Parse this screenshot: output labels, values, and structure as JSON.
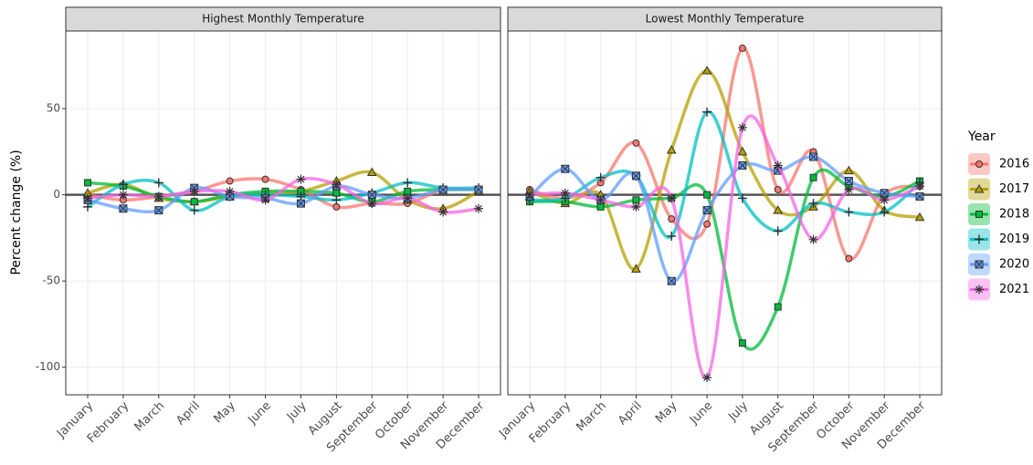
{
  "chart_data": [
    {
      "type": "line",
      "title": "Highest Monthly Temperature",
      "y_label": "Percent change (%)",
      "legend_title": "Year",
      "grid": true,
      "categories": [
        "January",
        "February",
        "March",
        "April",
        "May",
        "June",
        "July",
        "August",
        "September",
        "October",
        "November",
        "December"
      ],
      "ylim": [
        -116,
        95
      ],
      "yticks": [
        -100,
        -50,
        0,
        50
      ],
      "series": [
        {
          "name": "2016",
          "color": "#F8766D",
          "marker": "circle",
          "values": [
            0,
            -3,
            -1,
            2,
            8,
            9,
            3,
            -7,
            -5,
            -5,
            3,
            3
          ]
        },
        {
          "name": "2017",
          "color": "#B79F00",
          "marker": "triangle",
          "values": [
            1,
            6,
            -2,
            -4,
            -1,
            1,
            2,
            8,
            13,
            -3,
            -8,
            2
          ]
        },
        {
          "name": "2018",
          "color": "#00BA38",
          "marker": "square",
          "values": [
            7,
            5,
            -1,
            -4,
            0,
            2,
            2,
            1,
            -4,
            2,
            3,
            3
          ]
        },
        {
          "name": "2019",
          "color": "#00BFC4",
          "marker": "plus",
          "values": [
            -7,
            6,
            7,
            -9,
            -1,
            0,
            -1,
            -3,
            1,
            7,
            4,
            4
          ]
        },
        {
          "name": "2020",
          "color": "#619CFF",
          "marker": "boxx",
          "values": [
            -3,
            -8,
            -9,
            4,
            -1,
            -2,
            -5,
            5,
            0,
            -2,
            3,
            3
          ]
        },
        {
          "name": "2021",
          "color": "#F564E3",
          "marker": "star",
          "values": [
            -2,
            0,
            -1,
            2,
            2,
            -3,
            9,
            6,
            -5,
            -2,
            -10,
            -8
          ]
        }
      ]
    },
    {
      "type": "line",
      "title": "Lowest Monthly Temperature",
      "grid": true,
      "categories": [
        "January",
        "February",
        "March",
        "April",
        "May",
        "June",
        "July",
        "August",
        "September",
        "October",
        "November",
        "December"
      ],
      "ylim": [
        -116,
        95
      ],
      "yticks": [
        -100,
        -50,
        0,
        50
      ],
      "series": [
        {
          "color": "#F8766D",
          "marker": "circle",
          "values": [
            3,
            -2,
            7,
            30,
            -14,
            -17,
            85,
            3,
            25,
            -37,
            0,
            5
          ]
        },
        {
          "color": "#B79F00",
          "marker": "triangle",
          "values": [
            2,
            -5,
            0,
            -43,
            26,
            72,
            25,
            -9,
            -7,
            14,
            -9,
            -13
          ]
        },
        {
          "color": "#00BA38",
          "marker": "square",
          "values": [
            -4,
            -4,
            -7,
            -3,
            -2,
            0,
            -86,
            -65,
            10,
            5,
            -1,
            8
          ]
        },
        {
          "color": "#00BFC4",
          "marker": "plus",
          "values": [
            -3,
            -2,
            10,
            11,
            -24,
            48,
            -2,
            -21,
            -5,
            -10,
            -10,
            7
          ]
        },
        {
          "color": "#619CFF",
          "marker": "boxx",
          "values": [
            -1,
            15,
            -3,
            11,
            -50,
            -9,
            17,
            14,
            22,
            8,
            1,
            -1
          ]
        },
        {
          "color": "#F564E3",
          "marker": "star",
          "values": [
            0,
            1,
            -3,
            -7,
            -2,
            -106,
            39,
            17,
            -26,
            3,
            -3,
            5
          ]
        }
      ]
    }
  ]
}
